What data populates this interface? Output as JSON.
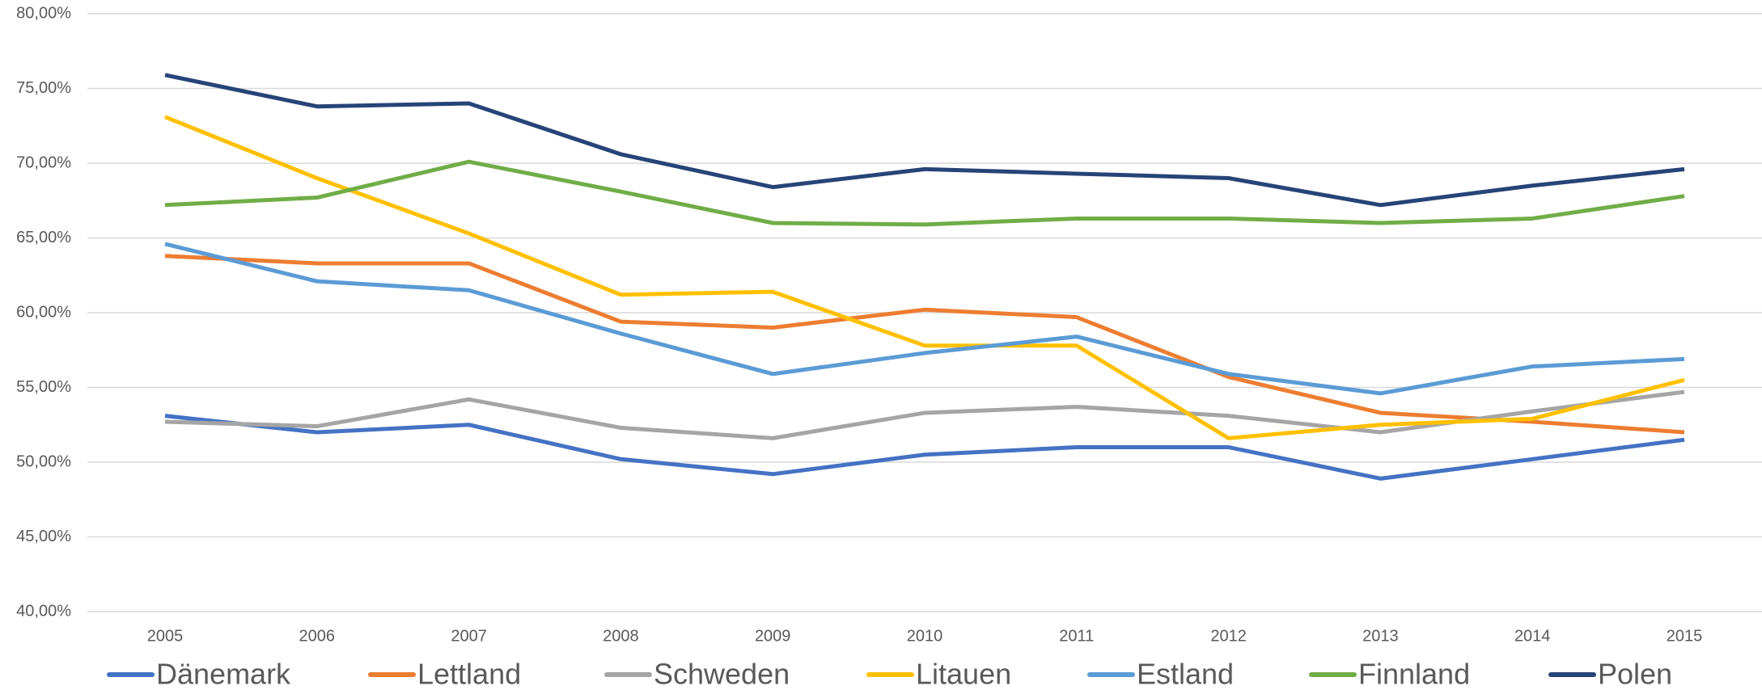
{
  "chart_data": {
    "type": "line",
    "categories": [
      "2005",
      "2006",
      "2007",
      "2008",
      "2009",
      "2010",
      "2011",
      "2012",
      "2013",
      "2014",
      "2015"
    ],
    "series": [
      {
        "name": "Dänemark",
        "color": "#4472c4",
        "values": [
          53.1,
          52.0,
          52.5,
          50.2,
          49.2,
          50.5,
          51.0,
          51.0,
          48.9,
          50.2,
          51.5
        ]
      },
      {
        "name": "Lettland",
        "color": "#ed7d31",
        "values": [
          63.8,
          63.3,
          63.3,
          59.4,
          59.0,
          60.2,
          59.7,
          55.7,
          53.3,
          52.7,
          52.0
        ]
      },
      {
        "name": "Schweden",
        "color": "#a5a5a5",
        "values": [
          52.7,
          52.4,
          54.2,
          52.3,
          51.6,
          53.3,
          53.7,
          53.1,
          52.0,
          53.4,
          54.7
        ]
      },
      {
        "name": "Litauen",
        "color": "#ffc000",
        "values": [
          73.1,
          69.0,
          65.3,
          61.2,
          61.4,
          57.8,
          57.8,
          51.6,
          52.5,
          52.9,
          55.5
        ]
      },
      {
        "name": "Estland",
        "color": "#5b9bd5",
        "values": [
          64.6,
          62.1,
          61.5,
          58.6,
          55.9,
          57.3,
          58.4,
          55.9,
          54.6,
          56.4,
          56.9
        ]
      },
      {
        "name": "Finnland",
        "color": "#70ad47",
        "values": [
          67.2,
          67.7,
          70.1,
          68.1,
          66.0,
          65.9,
          66.3,
          66.3,
          66.0,
          66.3,
          67.8
        ]
      },
      {
        "name": "Polen",
        "color": "#264478",
        "values": [
          75.9,
          73.8,
          74.0,
          70.6,
          68.4,
          69.6,
          69.3,
          69.0,
          67.2,
          68.5,
          69.6
        ]
      }
    ],
    "ylim": [
      40,
      80
    ],
    "yticks": [
      {
        "value": 40,
        "label": "40,00%"
      },
      {
        "value": 45,
        "label": "45,00%"
      },
      {
        "value": 50,
        "label": "50,00%"
      },
      {
        "value": 55,
        "label": "55,00%"
      },
      {
        "value": 60,
        "label": "60,00%"
      },
      {
        "value": 65,
        "label": "65,00%"
      },
      {
        "value": 70,
        "label": "70,00%"
      },
      {
        "value": 75,
        "label": "75,00%"
      },
      {
        "value": 80,
        "label": "80,00%"
      }
    ],
    "grid": true,
    "legend": "bottom"
  }
}
